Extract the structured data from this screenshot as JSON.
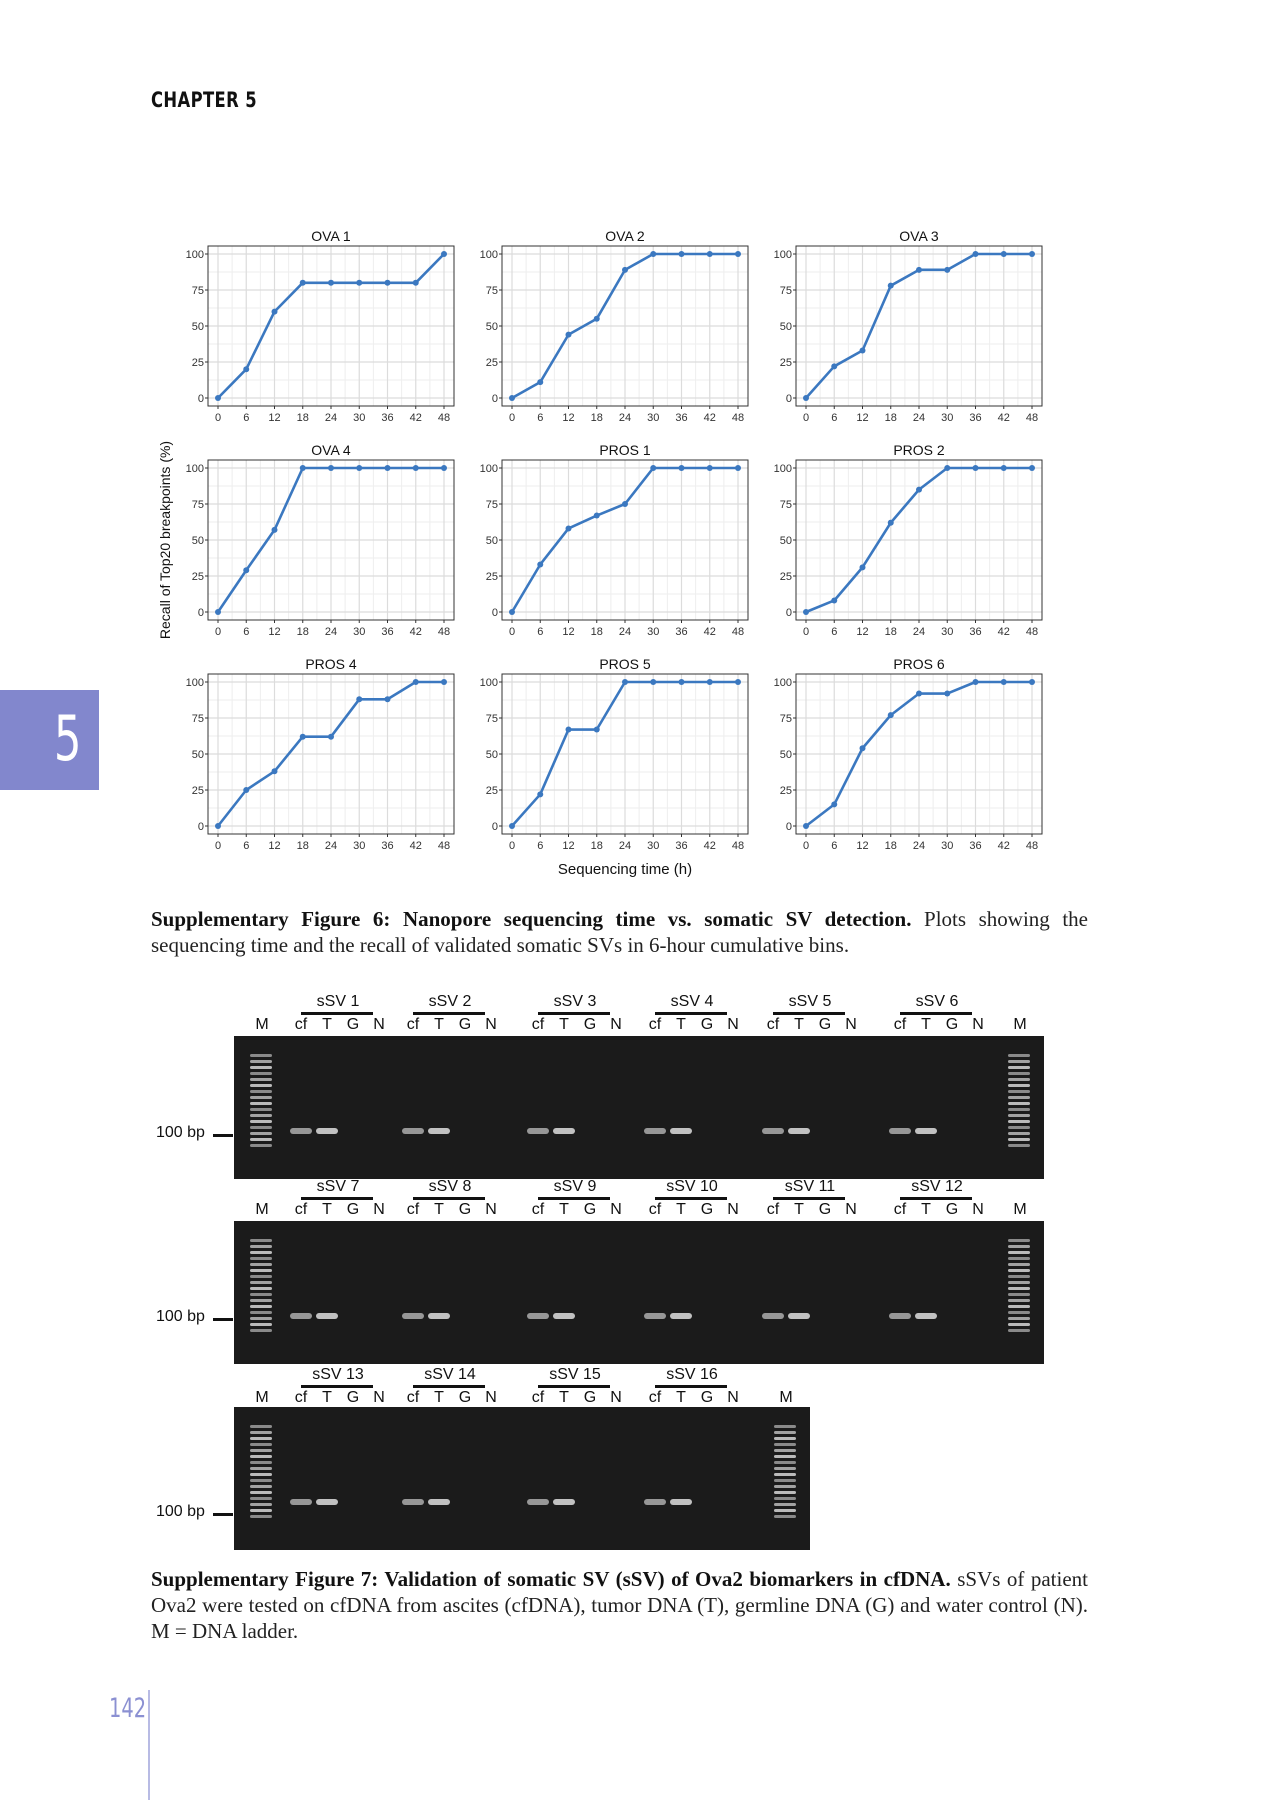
{
  "header": {
    "chapter": "CHAPTER 5",
    "tab": "5",
    "page_number": "142"
  },
  "figure6": {
    "ylabel": "Recall of Top20 breakpoints (%)",
    "xlabel": "Sequencing time (h)",
    "caption_bold": "Supplementary Figure 6: Nanopore sequencing time vs. somatic SV detection.",
    "caption_rest": " Plots showing the sequencing time and the recall of validated somatic SVs in 6-hour cumulative bins."
  },
  "chart_data": {
    "type": "line",
    "title": "",
    "xlabel": "Sequencing time (h)",
    "ylabel": "Recall of Top20 breakpoints (%)",
    "x": [
      0,
      6,
      12,
      18,
      24,
      30,
      36,
      42,
      48
    ],
    "xlim": [
      0,
      48
    ],
    "ylim": [
      0,
      100
    ],
    "yticks": [
      0,
      25,
      50,
      75,
      100
    ],
    "grid": true,
    "color": "#3b78c0",
    "panels": [
      {
        "name": "OVA 1",
        "values": [
          0,
          20,
          60,
          80,
          80,
          80,
          80,
          80,
          100
        ]
      },
      {
        "name": "OVA 2",
        "values": [
          0,
          11,
          44,
          55,
          89,
          100,
          100,
          100,
          100
        ]
      },
      {
        "name": "OVA 3",
        "values": [
          0,
          22,
          33,
          78,
          89,
          89,
          100,
          100,
          100
        ]
      },
      {
        "name": "OVA 4",
        "values": [
          0,
          29,
          57,
          100,
          100,
          100,
          100,
          100,
          100
        ]
      },
      {
        "name": "PROS 1",
        "values": [
          0,
          33,
          58,
          67,
          75,
          100,
          100,
          100,
          100
        ]
      },
      {
        "name": "PROS 2",
        "values": [
          0,
          8,
          31,
          62,
          85,
          100,
          100,
          100,
          100
        ]
      },
      {
        "name": "PROS 4",
        "values": [
          0,
          25,
          38,
          62,
          62,
          88,
          88,
          100,
          100
        ]
      },
      {
        "name": "PROS 5",
        "values": [
          0,
          22,
          67,
          67,
          100,
          100,
          100,
          100,
          100
        ]
      },
      {
        "name": "PROS 6",
        "values": [
          0,
          15,
          54,
          77,
          92,
          92,
          100,
          100,
          100
        ]
      }
    ]
  },
  "figure7": {
    "marker": "M",
    "lanes": [
      "cf",
      "T",
      "G",
      "N"
    ],
    "ladder_label": "100 bp",
    "row1_groups": [
      "sSV 1",
      "sSV 2",
      "sSV 3",
      "sSV 4",
      "sSV 5",
      "sSV 6"
    ],
    "row2_groups": [
      "sSV 7",
      "sSV 8",
      "sSV 9",
      "sSV 10",
      "sSV 11",
      "sSV 12"
    ],
    "row3_groups": [
      "sSV 13",
      "sSV 14",
      "sSV 15",
      "sSV 16"
    ],
    "caption_bold": "Supplementary Figure 7: Validation of somatic SV (sSV) of Ova2 biomarkers in cfDNA.",
    "caption_rest": " sSVs of patient Ova2 were tested on cfDNA from ascites (cfDNA), tumor DNA (T), germline DNA (G) and water control (N). M = DNA ladder."
  }
}
